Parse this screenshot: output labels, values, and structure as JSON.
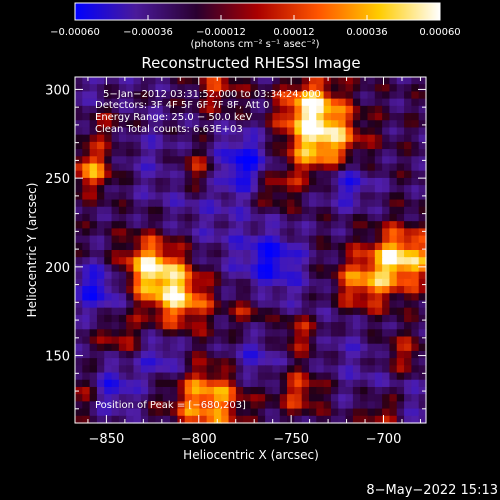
{
  "chart_data": {
    "type": "heatmap",
    "title": "Reconstructed RHESSI Image",
    "xlabel": "Heliocentric X (arcsec)",
    "ylabel": "Heliocentric Y (arcsec)",
    "xlim": [
      -867,
      -677
    ],
    "ylim": [
      112,
      307
    ],
    "xticks": [
      -850,
      -800,
      -750,
      -700
    ],
    "xtick_labels": [
      "−850",
      "−800",
      "−750",
      "−700"
    ],
    "yticks": [
      150,
      200,
      250,
      300
    ],
    "ytick_labels": [
      "150",
      "200",
      "250",
      "300"
    ],
    "colorbar": {
      "range": [
        -0.0006,
        0.0006
      ],
      "ticks": [
        -0.0006,
        -0.00036,
        -0.00012,
        0.00012,
        0.00036,
        0.0006
      ],
      "tick_labels": [
        "−0.00060",
        "−0.00036",
        "−0.00012",
        "0.00012",
        "0.00036",
        "0.00060"
      ],
      "unit_label": "(photons cm⁻² s⁻¹ asec⁻²)",
      "colors": [
        "#0000ff",
        "#4a1a9a",
        "#2a0030",
        "#aa0000",
        "#ff5500",
        "#ffcc00",
        "#ffffff"
      ]
    },
    "annotations": [
      "5−Jan−2012 03:31:52.000 to 03:34:24.000",
      "Detectors: 3F 4F 5F 6F 7F 8F, Att 0",
      "Energy Range: 25.0 − 50.0 keV",
      "Clean    Total counts: 6.63E+03"
    ],
    "peak_label": "Position of Peak = [−680,203]",
    "peak": [
      -680,
      203
    ],
    "bright_sources": [
      {
        "x": -733,
        "y": 270,
        "amp": 1.0,
        "r": 15
      },
      {
        "x": -740,
        "y": 292,
        "amp": 0.75,
        "r": 11
      },
      {
        "x": -690,
        "y": 205,
        "amp": 1.0,
        "r": 12
      },
      {
        "x": -712,
        "y": 190,
        "amp": 0.7,
        "r": 12
      },
      {
        "x": -826,
        "y": 200,
        "amp": 0.95,
        "r": 12
      },
      {
        "x": -810,
        "y": 182,
        "amp": 0.85,
        "r": 12
      },
      {
        "x": -795,
        "y": 125,
        "amp": 0.85,
        "r": 14
      },
      {
        "x": -745,
        "y": 163,
        "amp": 0.6,
        "r": 9
      },
      {
        "x": -858,
        "y": 255,
        "amp": 0.75,
        "r": 9
      },
      {
        "x": -800,
        "y": 255,
        "amp": 0.6,
        "r": 9
      },
      {
        "x": -760,
        "y": 245,
        "amp": 0.5,
        "r": 8
      },
      {
        "x": -850,
        "y": 280,
        "amp": 0.5,
        "r": 10
      },
      {
        "x": -745,
        "y": 130,
        "amp": 0.55,
        "r": 9
      },
      {
        "x": -690,
        "y": 150,
        "amp": 0.5,
        "r": 9
      },
      {
        "x": -700,
        "y": 118,
        "amp": 0.55,
        "r": 8
      },
      {
        "x": -790,
        "y": 300,
        "amp": 0.45,
        "r": 9
      },
      {
        "x": -862,
        "y": 130,
        "amp": 0.45,
        "r": 8
      },
      {
        "x": -773,
        "y": 175,
        "amp": 0.4,
        "r": 7
      },
      {
        "x": -843,
        "y": 160,
        "amp": 0.4,
        "r": 8
      }
    ],
    "dark_regions": [
      {
        "x": -776,
        "y": 258,
        "amp": -0.8,
        "r": 12
      },
      {
        "x": -855,
        "y": 188,
        "amp": -0.7,
        "r": 10
      },
      {
        "x": -720,
        "y": 248,
        "amp": -0.7,
        "r": 10
      },
      {
        "x": -760,
        "y": 205,
        "amp": -0.55,
        "r": 10
      },
      {
        "x": -848,
        "y": 132,
        "amp": -0.6,
        "r": 10
      },
      {
        "x": -820,
        "y": 148,
        "amp": -0.5,
        "r": 9
      },
      {
        "x": -770,
        "y": 148,
        "amp": -0.45,
        "r": 10
      }
    ]
  },
  "footer_date": "8−May−2022 15:13"
}
